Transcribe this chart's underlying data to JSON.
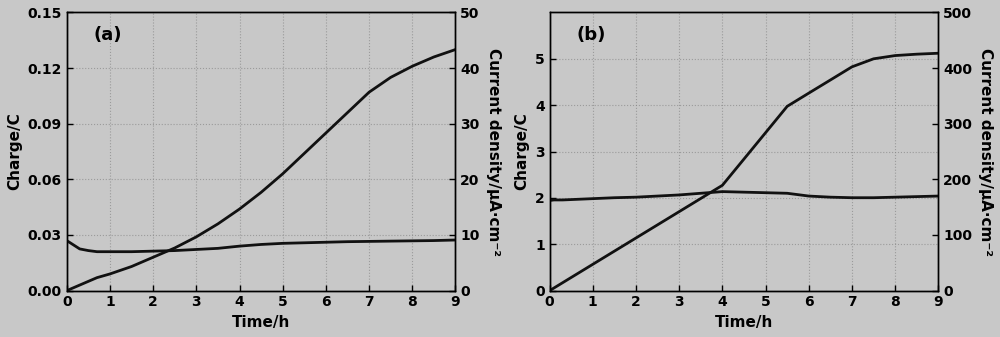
{
  "fig_width": 10.0,
  "fig_height": 3.37,
  "background_color": "#c8c8c8",
  "panel_a": {
    "label": "(a)",
    "xlabel": "Time/h",
    "ylabel_left": "Charge/C",
    "ylabel_right": "Current density/μA·cm⁻²",
    "xlim": [
      0,
      9
    ],
    "ylim_left": [
      0.0,
      0.15
    ],
    "ylim_right": [
      0,
      50
    ],
    "yticks_left": [
      0.0,
      0.03,
      0.06,
      0.09,
      0.12,
      0.15
    ],
    "yticks_right": [
      0,
      10,
      20,
      30,
      40,
      50
    ],
    "xticks": [
      0,
      1,
      2,
      3,
      4,
      5,
      6,
      7,
      8,
      9
    ],
    "charge_line": {
      "x": [
        0,
        0.1,
        0.3,
        0.5,
        0.7,
        1.0,
        1.5,
        2.0,
        2.5,
        3.0,
        3.5,
        4.0,
        4.5,
        5.0,
        5.5,
        6.0,
        6.5,
        7.0,
        7.5,
        8.0,
        8.5,
        9.0
      ],
      "y": [
        0.0,
        0.001,
        0.003,
        0.005,
        0.007,
        0.009,
        0.013,
        0.018,
        0.023,
        0.029,
        0.036,
        0.044,
        0.053,
        0.063,
        0.074,
        0.085,
        0.096,
        0.107,
        0.115,
        0.121,
        0.126,
        0.13
      ]
    },
    "current_line": {
      "x": [
        0,
        0.1,
        0.3,
        0.5,
        0.7,
        0.9,
        1.2,
        1.5,
        2.0,
        2.5,
        3.0,
        3.5,
        4.0,
        4.5,
        5.0,
        5.5,
        6.0,
        6.5,
        7.0,
        7.5,
        8.0,
        8.5,
        9.0
      ],
      "y": [
        9.0,
        8.5,
        7.5,
        7.2,
        7.0,
        7.0,
        7.0,
        7.0,
        7.1,
        7.2,
        7.4,
        7.6,
        8.0,
        8.3,
        8.5,
        8.6,
        8.7,
        8.8,
        8.85,
        8.9,
        8.95,
        9.0,
        9.1
      ]
    }
  },
  "panel_b": {
    "label": "(b)",
    "xlabel": "Time/h",
    "ylabel_left": "Charge/C",
    "ylabel_right": "Current density/μA·cm⁻²",
    "xlim": [
      0,
      9
    ],
    "ylim_left": [
      0,
      6
    ],
    "ylim_right": [
      0,
      500
    ],
    "yticks_left": [
      0,
      1,
      2,
      3,
      4,
      5
    ],
    "yticks_right": [
      0,
      100,
      200,
      300,
      400,
      500
    ],
    "xticks": [
      0,
      1,
      2,
      3,
      4,
      5,
      6,
      7,
      8,
      9
    ],
    "charge_line": {
      "x": [
        0,
        0.5,
        1.0,
        1.5,
        2.0,
        2.5,
        3.0,
        3.5,
        4.0,
        4.5,
        5.0,
        5.5,
        6.0,
        6.5,
        7.0,
        7.5,
        8.0,
        8.5,
        9.0
      ],
      "y": [
        0.0,
        0.284,
        0.568,
        0.852,
        1.136,
        1.42,
        1.704,
        1.988,
        2.272,
        2.839,
        3.407,
        3.975,
        4.26,
        4.543,
        4.827,
        5.0,
        5.07,
        5.1,
        5.12
      ]
    },
    "current_line": {
      "x": [
        0,
        0.1,
        0.3,
        0.6,
        0.9,
        1.2,
        1.5,
        2.0,
        2.5,
        3.0,
        3.5,
        4.0,
        4.5,
        5.0,
        5.5,
        6.0,
        6.5,
        7.0,
        7.5,
        8.0,
        8.5,
        9.0
      ],
      "y": [
        162,
        163,
        163,
        164,
        165,
        166,
        167,
        168,
        170,
        172,
        175,
        178,
        177,
        176,
        175,
        170,
        168,
        167,
        167,
        168,
        169,
        170
      ]
    }
  },
  "line_color": "#111111",
  "line_width": 2.0,
  "tick_fontsize": 10,
  "label_fontsize": 11,
  "panel_label_fontsize": 13
}
